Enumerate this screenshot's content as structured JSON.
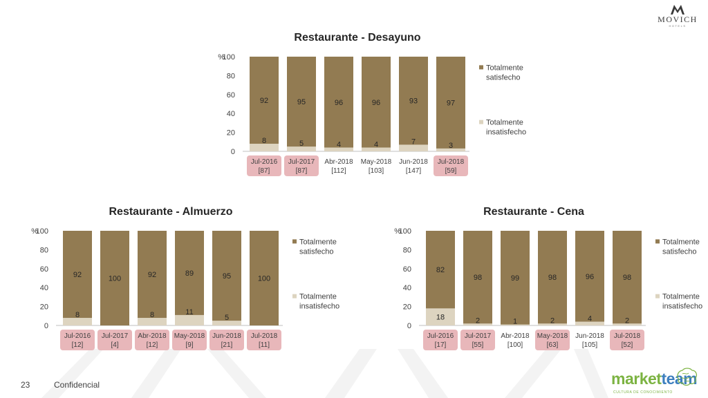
{
  "header": {
    "brand": "MOVICH",
    "brand_sub": "HOTELS"
  },
  "footer": {
    "page_number": "23",
    "label": "Confidencial",
    "partner_logo_part1": "market",
    "partner_logo_part2": "team",
    "partner_tagline": "CULTURA DE CONOCIMIENTO"
  },
  "colors": {
    "satisfied": "#927b52",
    "unsatisfied": "#ddd4c0",
    "highlight": "#e8b7ba"
  },
  "chart_data": [
    {
      "type": "bar",
      "stacked": true,
      "title": "Restaurante - Desayuno",
      "ylabel": "%",
      "ylim": [
        0,
        100
      ],
      "yticks": [
        "100",
        "80",
        "60",
        "40",
        "20",
        "0"
      ],
      "categories": [
        "Jul-2016",
        "Jul-2017",
        "Abr-2018",
        "May-2018",
        "Jun-2018",
        "Jul-2018"
      ],
      "sample_sizes": [
        "[87]",
        "[87]",
        "[112]",
        "[103]",
        "[147]",
        "[59]"
      ],
      "highlighted": [
        true,
        true,
        false,
        false,
        false,
        true
      ],
      "legend_position": "right",
      "series": [
        {
          "name": "Totalmente insatisfecho",
          "values": [
            8,
            5,
            4,
            4,
            7,
            3
          ],
          "labels": [
            "8",
            "5",
            "4",
            "4",
            "7",
            "3"
          ]
        },
        {
          "name": "Totalmente satisfecho",
          "values": [
            92,
            95,
            96,
            96,
            93,
            97
          ],
          "labels": [
            "92",
            "95",
            "96",
            "96",
            "93",
            "97"
          ]
        }
      ]
    },
    {
      "type": "bar",
      "stacked": true,
      "title": "Restaurante - Almuerzo",
      "ylabel": "%",
      "ylim": [
        0,
        100
      ],
      "yticks": [
        "100",
        "80",
        "60",
        "40",
        "20",
        "0"
      ],
      "categories": [
        "Jul-2016",
        "Jul-2017",
        "Abr-2018",
        "May-2018",
        "Jun-2018",
        "Jul-2018"
      ],
      "sample_sizes": [
        "[12]",
        "[4]",
        "[12]",
        "[9]",
        "[21]",
        "[11]"
      ],
      "highlighted": [
        true,
        true,
        true,
        true,
        true,
        true
      ],
      "legend_position": "right",
      "series": [
        {
          "name": "Totalmente insatisfecho",
          "values": [
            8,
            0,
            8,
            11,
            5,
            0
          ],
          "labels": [
            "8",
            "",
            "8",
            "11",
            "5",
            ""
          ]
        },
        {
          "name": "Totalmente satisfecho",
          "values": [
            92,
            100,
            92,
            89,
            95,
            100
          ],
          "labels": [
            "92",
            "100",
            "92",
            "89",
            "95",
            "100"
          ]
        }
      ]
    },
    {
      "type": "bar",
      "stacked": true,
      "title": "Restaurante - Cena",
      "ylabel": "%",
      "ylim": [
        0,
        100
      ],
      "yticks": [
        "100",
        "80",
        "60",
        "40",
        "20",
        "0"
      ],
      "categories": [
        "Jul-2016",
        "Jul-2017",
        "Abr-2018",
        "May-2018",
        "Jun-2018",
        "Jul-2018"
      ],
      "sample_sizes": [
        "[17]",
        "[55]",
        "[100]",
        "[63]",
        "[105]",
        "[52]"
      ],
      "highlighted": [
        true,
        true,
        false,
        true,
        false,
        true
      ],
      "legend_position": "right",
      "series": [
        {
          "name": "Totalmente insatisfecho",
          "values": [
            18,
            2,
            1,
            2,
            4,
            2
          ],
          "labels": [
            "18",
            "2",
            "1",
            "2",
            "4",
            "2"
          ]
        },
        {
          "name": "Totalmente satisfecho",
          "values": [
            82,
            98,
            99,
            98,
            96,
            98
          ],
          "labels": [
            "82",
            "98",
            "99",
            "98",
            "96",
            "98"
          ]
        }
      ]
    }
  ]
}
